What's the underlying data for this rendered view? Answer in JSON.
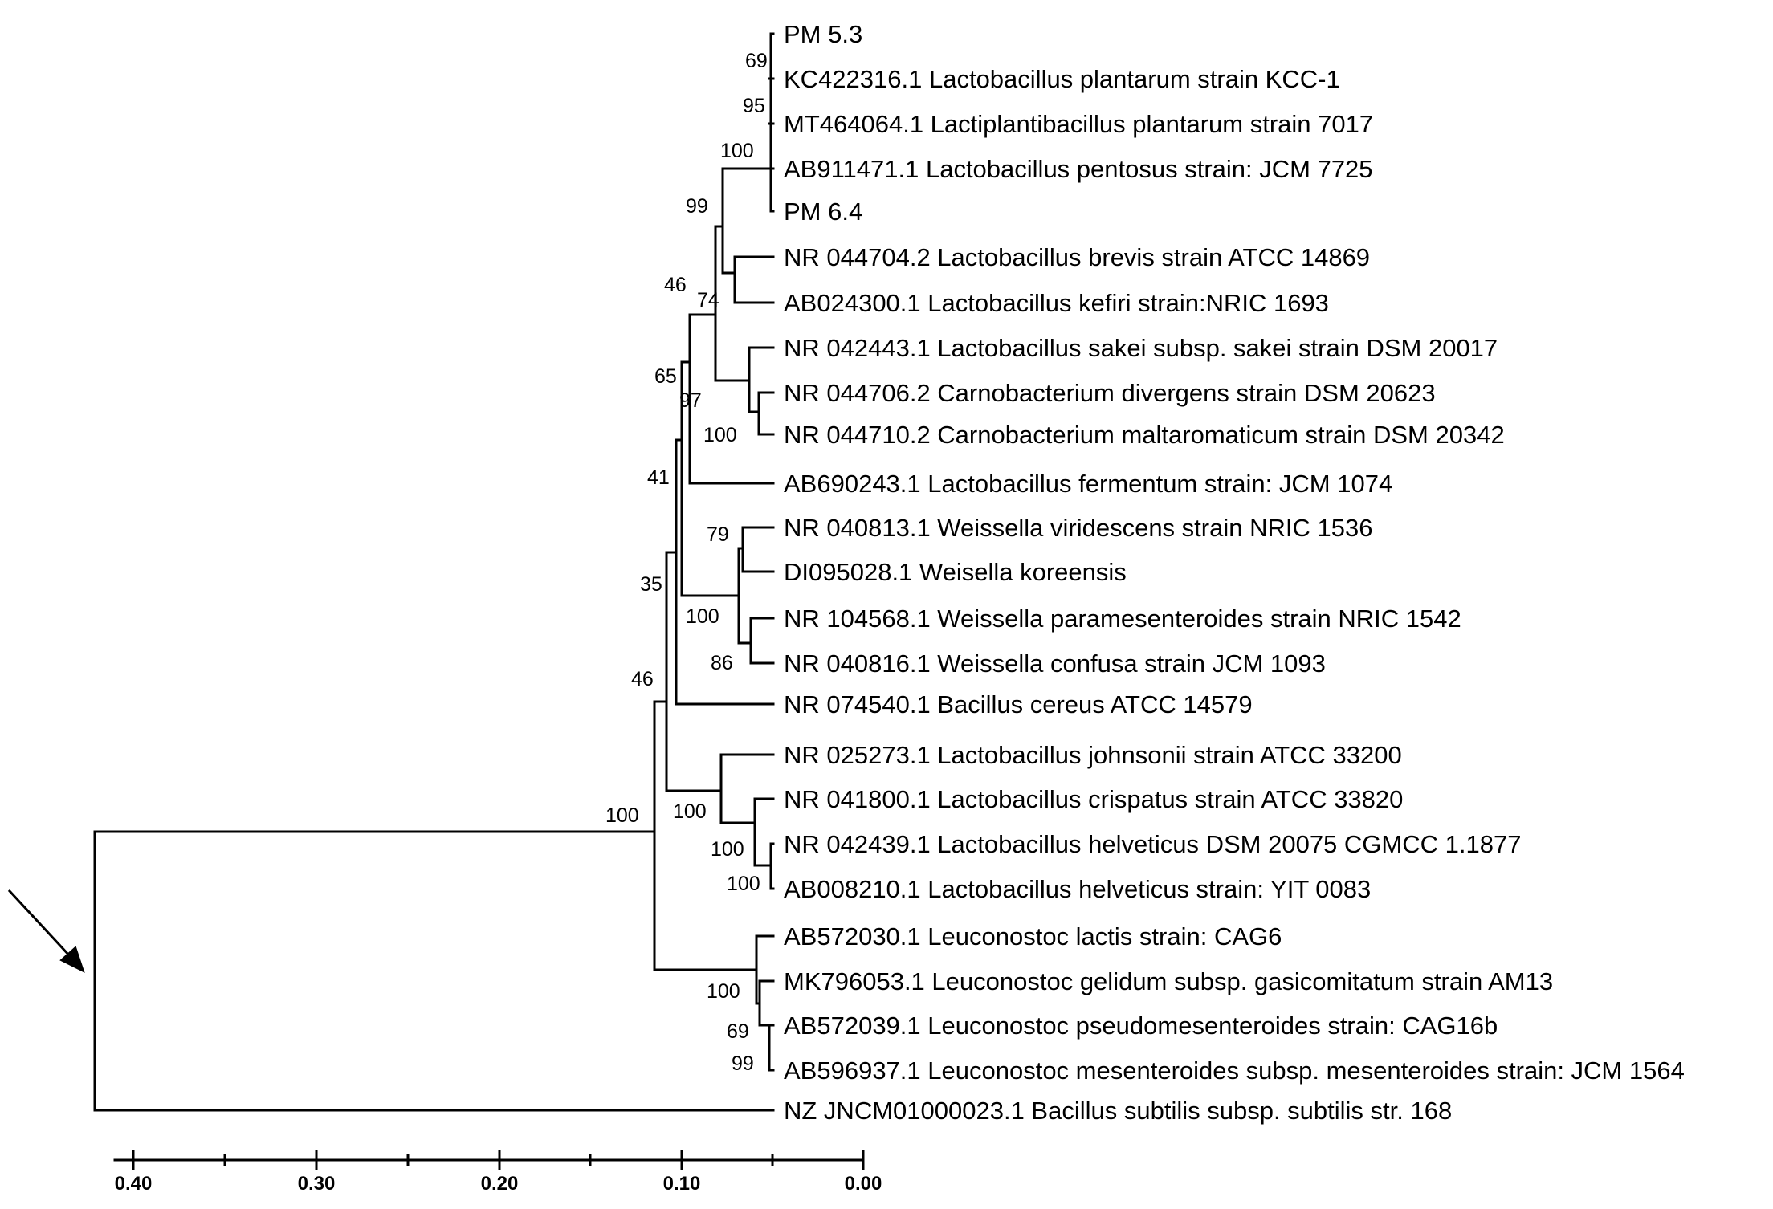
{
  "taxa": [
    "PM 5.3",
    "KC422316.1 Lactobacillus plantarum strain KCC-1",
    "MT464064.1 Lactiplantibacillus plantarum strain 7017",
    "AB911471.1 Lactobacillus pentosus strain: JCM 7725",
    "PM 6.4",
    "NR 044704.2 Lactobacillus brevis strain ATCC 14869",
    "AB024300.1 Lactobacillus kefiri strain:NRIC 1693",
    "NR 042443.1 Lactobacillus sakei subsp. sakei strain DSM 20017",
    "NR 044706.2 Carnobacterium divergens strain DSM 20623",
    "NR 044710.2 Carnobacterium maltaromaticum strain DSM 20342",
    "AB690243.1 Lactobacillus fermentum strain: JCM 1074",
    "NR 040813.1 Weissella viridescens strain NRIC 1536",
    "DI095028.1 Weisella koreensis",
    "NR 104568.1 Weissella paramesenteroides strain NRIC 1542",
    "NR 040816.1 Weissella confusa strain JCM 1093",
    "NR 074540.1 Bacillus cereus ATCC 14579",
    "NR 025273.1 Lactobacillus johnsonii strain ATCC 33200",
    "NR 041800.1 Lactobacillus crispatus strain ATCC 33820",
    "NR 042439.1 Lactobacillus helveticus DSM 20075 CGMCC 1.1877",
    "AB008210.1 Lactobacillus helveticus strain: YIT 0083",
    "AB572030.1 Leuconostoc lactis strain: CAG6",
    "MK796053.1 Leuconostoc gelidum subsp. gasicomitatum strain AM13",
    "AB572039.1 Leuconostoc pseudomesenteroides strain: CAG16b",
    "AB596937.1 Leuconostoc mesenteroides subsp. mesenteroides strain: JCM 1564",
    "NZ JNCM01000023.1 Bacillus subtilis subsp. subtilis str. 168"
  ],
  "bootstrap": {
    "a": "69",
    "b": "95",
    "c": "100",
    "d": "99",
    "e": "46",
    "f": "74",
    "g": "65",
    "h": "97",
    "i": "100",
    "j": "41",
    "k": "79",
    "l": "35",
    "m": "100",
    "n": "86",
    "o": "46",
    "p": "100",
    "q": "100",
    "r": "100",
    "s": "100",
    "t": "100",
    "u": "69",
    "v": "99"
  },
  "scale_axis": {
    "ticks": [
      "0.40",
      "0.30",
      "0.20",
      "0.10",
      "0.00"
    ]
  }
}
